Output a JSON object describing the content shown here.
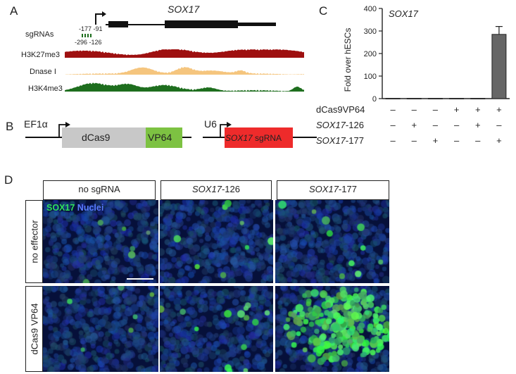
{
  "panels": {
    "a": "A",
    "b": "B",
    "c": "C",
    "d": "D"
  },
  "panel_a": {
    "gene": "SOX17",
    "sgrnas_label": "sgRNAs",
    "sg_top": [
      "-177",
      "-91"
    ],
    "sg_bottom": [
      "-296",
      "-126"
    ],
    "tracks": [
      {
        "name": "H3K27me3",
        "color": "#9e1010"
      },
      {
        "name": "Dnase I",
        "color": "#f5c57e"
      },
      {
        "name": "H3K4me3",
        "color": "#1e6e1e"
      }
    ]
  },
  "panel_b": {
    "promoter1": "EF1α",
    "dcas9": "dCas9",
    "vp64": "VP64",
    "promoter2": "U6",
    "sg_gene": "SOX17",
    "sg_suffix": " sgRNA",
    "colors": {
      "dcas9": "#c8c8c8",
      "vp64": "#7dc242",
      "sgrna": "#ee2b2b"
    }
  },
  "panel_c": {
    "chart_data": {
      "type": "bar",
      "title": "SOX17",
      "ylabel": "Fold over hESCs",
      "ylim": [
        0,
        400
      ],
      "yticks": [
        0,
        100,
        200,
        300,
        400
      ],
      "values": [
        1,
        1,
        1,
        1,
        1,
        285
      ],
      "errors": [
        0,
        0,
        0,
        0,
        0,
        35
      ],
      "bar_color": "#666666",
      "conditions": [
        {
          "label": "dCas9VP64",
          "italic_part": "",
          "signs": [
            "–",
            "–",
            "–",
            "+",
            "+",
            "+"
          ]
        },
        {
          "label": "-126",
          "italic_part": "SOX17",
          "signs": [
            "–",
            "+",
            "–",
            "–",
            "+",
            "–"
          ]
        },
        {
          "label": "-177",
          "italic_part": "SOX17",
          "signs": [
            "–",
            "–",
            "+",
            "–",
            "–",
            "+"
          ]
        }
      ]
    }
  },
  "panel_d": {
    "col_headers": [
      {
        "italic": "",
        "text": "no sgRNA"
      },
      {
        "italic": "SOX17",
        "text": "-126"
      },
      {
        "italic": "SOX17",
        "text": "-177"
      }
    ],
    "row_labels": [
      "no effector",
      "dCas9 VP64"
    ],
    "stain_green": "SOX17",
    "stain_blue": " Nuclei"
  }
}
